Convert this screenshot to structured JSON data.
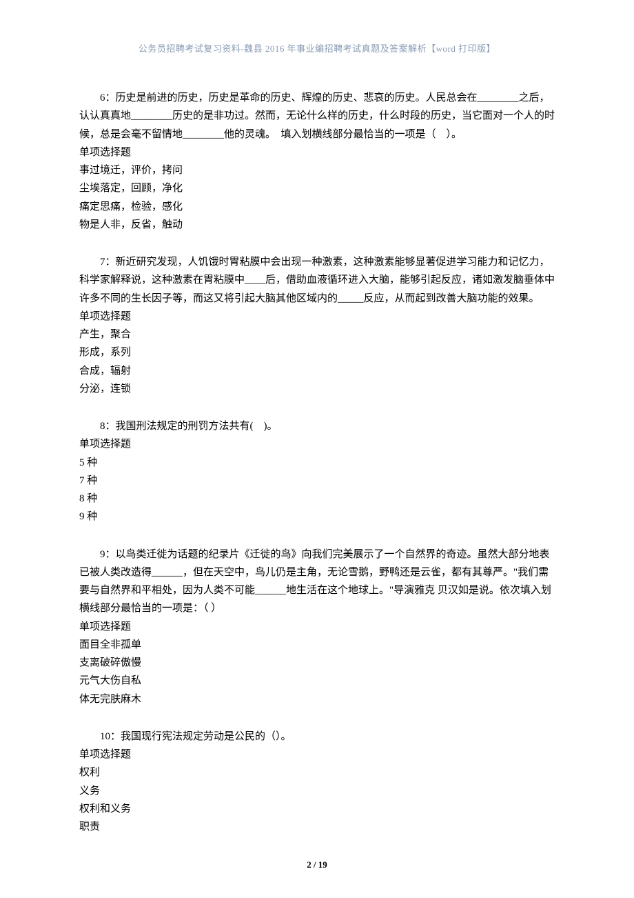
{
  "header": "公务员招聘考试复习资料-魏县 2016 年事业编招聘考试真题及答案解析【word 打印版】",
  "questions": [
    {
      "number": "6",
      "text": "：历史是前进的历史，历史是革命的历史、辉煌的历史、悲哀的历史。人民总会在________之后，认认真真地________历史的是非功过。然而，无论什么样的历史，什么时段的历史，当它面对一个人的时候，总是会毫不留情地________他的灵魂。　填入划横线部分最恰当的一项是（　）。",
      "type": "单项选择题",
      "options": [
        "事过境迁，评价，拷问",
        "尘埃落定，回顾，净化",
        "痛定思痛，检验，感化",
        "物是人非，反省，触动"
      ]
    },
    {
      "number": "7",
      "text": "：新近研究发现，人饥饿时胃粘膜中会出现一种激素，这种激素能够显著促进学习能力和记忆力，科学家解释说，这种激素在胃粘膜中____后，借助血液循环进入大脑，能够引起反应，诸如激发脑垂体中许多不同的生长因子等，而这又将引起大脑其他区域内的_____反应，从而起到改善大脑功能的效果。",
      "type": "单项选择题",
      "options": [
        "产生，聚合",
        "形成，系列",
        "合成，辐射",
        "分泌，连锁"
      ]
    },
    {
      "number": "8",
      "text": "：我国刑法规定的刑罚方法共有(　)。",
      "type": "单项选择题",
      "options": [
        "5 种",
        "7 种",
        "8 种",
        "9 种"
      ]
    },
    {
      "number": "9",
      "text": "：以鸟类迁徙为话题的纪录片《迁徙的鸟》向我们完美展示了一个自然界的奇迹。虽然大部分地表已被人类改造得______，但在天空中，鸟儿仍是主角，无论雪鹅，野鸭还是云雀，都有其尊严。\"我们需要与自然界和平相处，因为人类不可能______地生活在这个地球上。\"导演雅克 贝汉如是说。依次填入划横线部分最恰当的一项是：（ ）",
      "type": "单项选择题",
      "options": [
        "面目全非孤单",
        "支离破碎傲慢",
        "元气大伤自私",
        "体无完肤麻木"
      ]
    },
    {
      "number": "10",
      "text": "：我国现行宪法规定劳动是公民的（）。",
      "type": "单项选择题",
      "options": [
        "权利",
        "义务",
        "权利和义务",
        "职责"
      ]
    }
  ],
  "footer": "2 / 19"
}
